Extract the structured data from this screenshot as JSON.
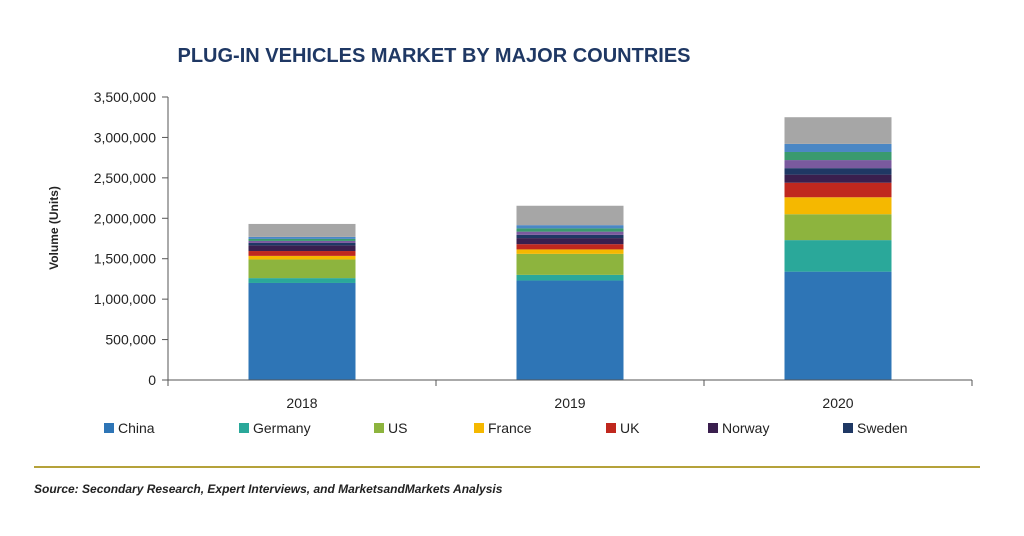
{
  "colors": {
    "China": "#2e75b6",
    "Germany": "#2aa89a",
    "US": "#8db43e",
    "France": "#f5b800",
    "UK": "#c0281e",
    "Norway": "#3a1f4e",
    "Sweden": "#1f3864",
    "extra1": "#7a5a9e",
    "extra2": "#3a9a6e",
    "extra3": "#4b87c4",
    "Others": "#a6a6a6"
  },
  "chart_data": {
    "type": "bar",
    "stacked": true,
    "title": "PLUG-IN VEHICLES MARKET BY MAJOR COUNTRIES",
    "ylabel": "Volume (Units)",
    "xlabel": "",
    "ylim": [
      0,
      3500000
    ],
    "yticks": [
      0,
      500000,
      1000000,
      1500000,
      2000000,
      2500000,
      3000000,
      3500000
    ],
    "ytick_labels": [
      "0",
      "500,000",
      "1,000,000",
      "1,500,000",
      "2,000,000",
      "2,500,000",
      "3,000,000",
      "3,500,000"
    ],
    "categories": [
      "2018",
      "2019",
      "2020"
    ],
    "legend_position": "bottom",
    "series": [
      {
        "name": "China",
        "values": [
          1200000,
          1230000,
          1340000
        ]
      },
      {
        "name": "Germany",
        "values": [
          60000,
          70000,
          390000
        ]
      },
      {
        "name": "US",
        "values": [
          230000,
          260000,
          320000
        ]
      },
      {
        "name": "France",
        "values": [
          45000,
          55000,
          210000
        ]
      },
      {
        "name": "UK",
        "values": [
          60000,
          65000,
          180000
        ]
      },
      {
        "name": "Norway",
        "values": [
          70000,
          75000,
          100000
        ]
      },
      {
        "name": "Sweden",
        "values": [
          30000,
          40000,
          80000
        ]
      },
      {
        "name": "",
        "values": [
          25000,
          40000,
          100000
        ],
        "color_key": "extra1"
      },
      {
        "name": "",
        "values": [
          25000,
          40000,
          100000
        ],
        "color_key": "extra2"
      },
      {
        "name": "",
        "values": [
          25000,
          40000,
          100000
        ],
        "color_key": "extra3"
      },
      {
        "name": "",
        "values": [
          160000,
          240000,
          330000
        ],
        "color_key": "Others"
      }
    ]
  },
  "source_text": "Source: Secondary Research, Expert Interviews, and MarketsandMarkets Analysis"
}
